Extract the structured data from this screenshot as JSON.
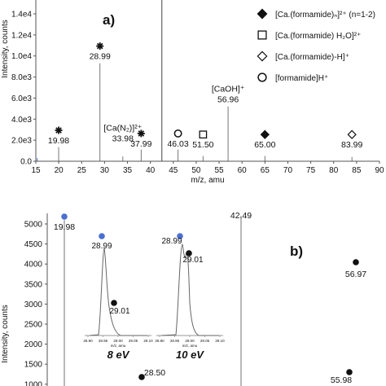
{
  "chart_data": [
    {
      "type": "bar",
      "panel_label": "a)",
      "xlabel": "m/z, amu",
      "ylabel": "Intensity, counts",
      "xlim": [
        15,
        90
      ],
      "ylim": [
        0,
        15000
      ],
      "x_ticks": [
        "15",
        "20",
        "25",
        "30",
        "35",
        "40",
        "45",
        "50",
        "55",
        "60",
        "65",
        "70",
        "75",
        "80",
        "85",
        "90"
      ],
      "y_ticks": [
        "0.0",
        "2.0e3",
        "4.0e3",
        "6.0e3",
        "8.0e3",
        "1.0e4",
        "1.2e4",
        "1.4e4"
      ],
      "peaks": [
        {
          "x": 15.3,
          "y": 300
        },
        {
          "x": 19.98,
          "y": 1350
        },
        {
          "x": 28.99,
          "y": 9300
        },
        {
          "x": 33.98,
          "y": 450
        },
        {
          "x": 37.99,
          "y": 1100
        },
        {
          "x": 42.49,
          "y": 15500
        },
        {
          "x": 46.03,
          "y": 1100
        },
        {
          "x": 51.5,
          "y": 500
        },
        {
          "x": 56.96,
          "y": 5200
        },
        {
          "x": 65.0,
          "y": 500
        },
        {
          "x": 83.99,
          "y": 400
        }
      ],
      "labels": [
        {
          "x": 19.98,
          "text": "19.98",
          "y": 1700,
          "marker": "asterisk"
        },
        {
          "x": 28.99,
          "text": "28.99",
          "y": 9700,
          "marker": "asterisk"
        },
        {
          "x": 33.98,
          "text": "33.98",
          "y": 1900,
          "marker": "",
          "formula": "[Ca(N₂)]²⁺"
        },
        {
          "x": 37.99,
          "text": "37.99",
          "y": 1400,
          "marker": "asterisk"
        },
        {
          "x": 46.03,
          "text": "46.03",
          "y": 1400,
          "marker": "circle"
        },
        {
          "x": 51.5,
          "text": "51.50",
          "y": 1300,
          "marker": "square"
        },
        {
          "x": 56.96,
          "text": "56.96",
          "y": 5600,
          "marker": "",
          "formula": "[CaOH]⁺"
        },
        {
          "x": 65.0,
          "text": "65.00",
          "y": 1300,
          "marker": "diamond-filled"
        },
        {
          "x": 83.99,
          "text": "83.99",
          "y": 1300,
          "marker": "diamond-open"
        }
      ],
      "legend": [
        {
          "marker": "diamond-filled",
          "text": "[Ca.(formamide)ₙ]²⁺ (n=1-2)"
        },
        {
          "marker": "square",
          "text": "[Ca.(formamide) H₂O]²⁺"
        },
        {
          "marker": "diamond-open",
          "text": "[Ca.(formamide)-H]⁺"
        },
        {
          "marker": "circle",
          "text": "[formamide]H⁺"
        }
      ]
    },
    {
      "type": "bar",
      "panel_label": "b)",
      "ylabel": "Intensity, counts",
      "y_ticks": [
        "5000",
        "4500",
        "4000",
        "3500",
        "3000",
        "2500",
        "2000",
        "1500",
        "1000"
      ],
      "ylim_visible": [
        1000,
        5100
      ],
      "peaks": [
        {
          "x": 19.98,
          "y": 5100,
          "label": "19.98",
          "marker": "blue-circle"
        },
        {
          "x": 42.49,
          "y": 5200,
          "label": "42.49"
        }
      ],
      "point_labels": [
        {
          "text": "28.50",
          "marker": "black-circle"
        },
        {
          "text": "56.97",
          "marker": "black-circle"
        },
        {
          "text": "55.98",
          "marker": "black-circle"
        }
      ],
      "insets": [
        {
          "caption": "8 eV",
          "xlabel": "m/z, amu",
          "ticks": [
            "28.90",
            "28.95",
            "29.00",
            "29.05",
            "29.10"
          ],
          "peak_labels": [
            "28.99",
            "29.01"
          ]
        },
        {
          "caption": "10 eV",
          "xlabel": "m/z, amu",
          "ticks": [
            "28.90",
            "28.95",
            "29.00",
            "29.05",
            "29.10"
          ],
          "peak_labels": [
            "28.99",
            "29.01"
          ]
        }
      ]
    }
  ]
}
